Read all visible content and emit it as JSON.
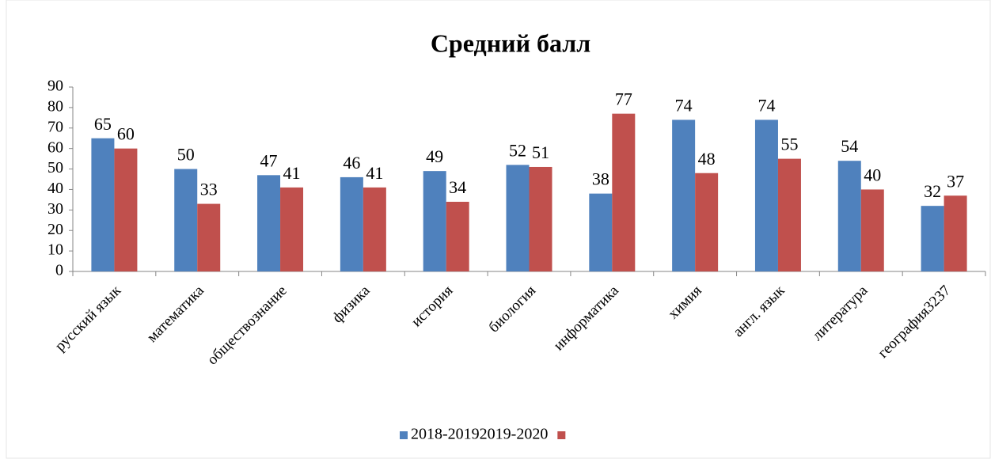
{
  "chart_data": {
    "type": "bar",
    "title": "Средний балл",
    "categories": [
      "русский язык",
      "математика",
      "обществознание",
      "физика",
      "история",
      "биология",
      "информатика",
      "химия",
      "англ. язык",
      "литература",
      "география3237"
    ],
    "series": [
      {
        "name": "2018-20192019-2020",
        "color": "#4f81bd",
        "values": [
          65,
          50,
          47,
          46,
          49,
          52,
          38,
          74,
          74,
          54,
          32
        ]
      },
      {
        "color": "#c0504d",
        "values": [
          60,
          33,
          41,
          41,
          34,
          51,
          77,
          48,
          55,
          40,
          37
        ]
      }
    ],
    "ylim": [
      0,
      90
    ],
    "yticks": [
      0,
      10,
      20,
      30,
      40,
      50,
      60,
      70,
      80,
      90
    ],
    "grid": false,
    "legend": "bottom"
  }
}
